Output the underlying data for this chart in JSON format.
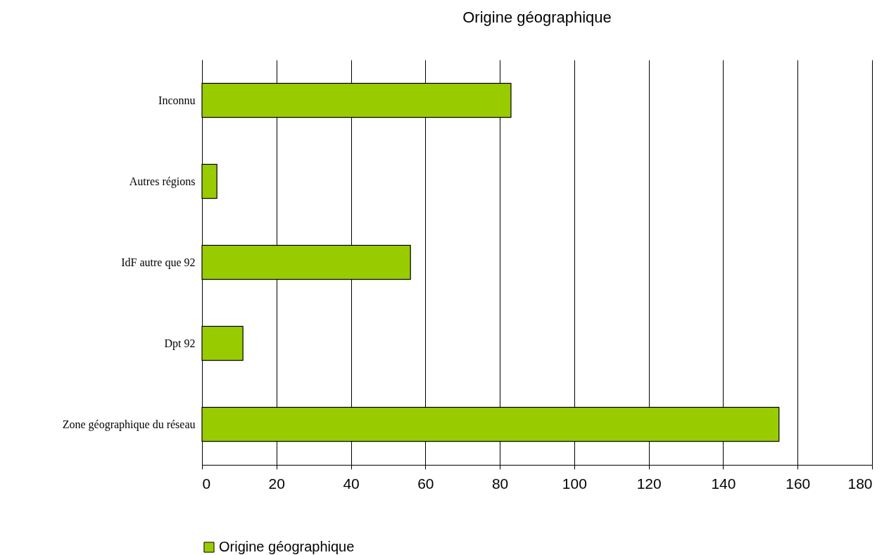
{
  "chart_data": {
    "type": "bar",
    "orientation": "horizontal",
    "title": "Origine géographique",
    "categories": [
      "Inconnu",
      "Autres régions",
      "IdF autre que 92",
      "Dpt 92",
      "Zone géographique du réseau"
    ],
    "series": [
      {
        "name": "Origine géographique",
        "color": "#99cc00",
        "values": [
          83,
          4,
          56,
          11,
          155
        ]
      }
    ],
    "xlim": [
      0,
      180
    ],
    "xticks": [
      0,
      20,
      40,
      60,
      80,
      100,
      120,
      140,
      160,
      180
    ],
    "grid": "x",
    "legend": "bottom"
  }
}
